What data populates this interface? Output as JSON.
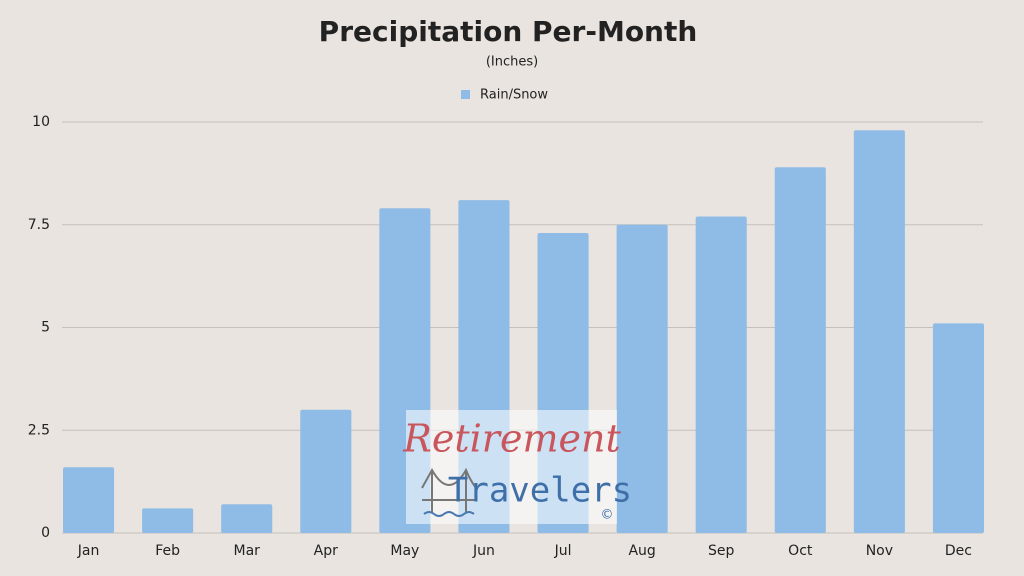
{
  "chart_data": {
    "type": "bar",
    "title": "Precipitation Per-Month",
    "subtitle": "(Inches)",
    "categories": [
      "Jan",
      "Feb",
      "Mar",
      "Apr",
      "May",
      "Jun",
      "Jul",
      "Aug",
      "Sep",
      "Oct",
      "Nov",
      "Dec"
    ],
    "series": [
      {
        "name": "Rain/Snow",
        "color": "#8fbce6",
        "values": [
          1.6,
          0.6,
          0.7,
          3.0,
          7.9,
          8.1,
          7.3,
          7.5,
          7.7,
          8.9,
          9.8,
          5.1
        ]
      }
    ],
    "ylim": [
      0,
      10
    ],
    "yticks": [
      0,
      2.5,
      5,
      7.5,
      10
    ],
    "grid": true,
    "legend": "top"
  },
  "watermark": {
    "line1": "Retirement",
    "line2": "Travelers",
    "mark": "©"
  }
}
